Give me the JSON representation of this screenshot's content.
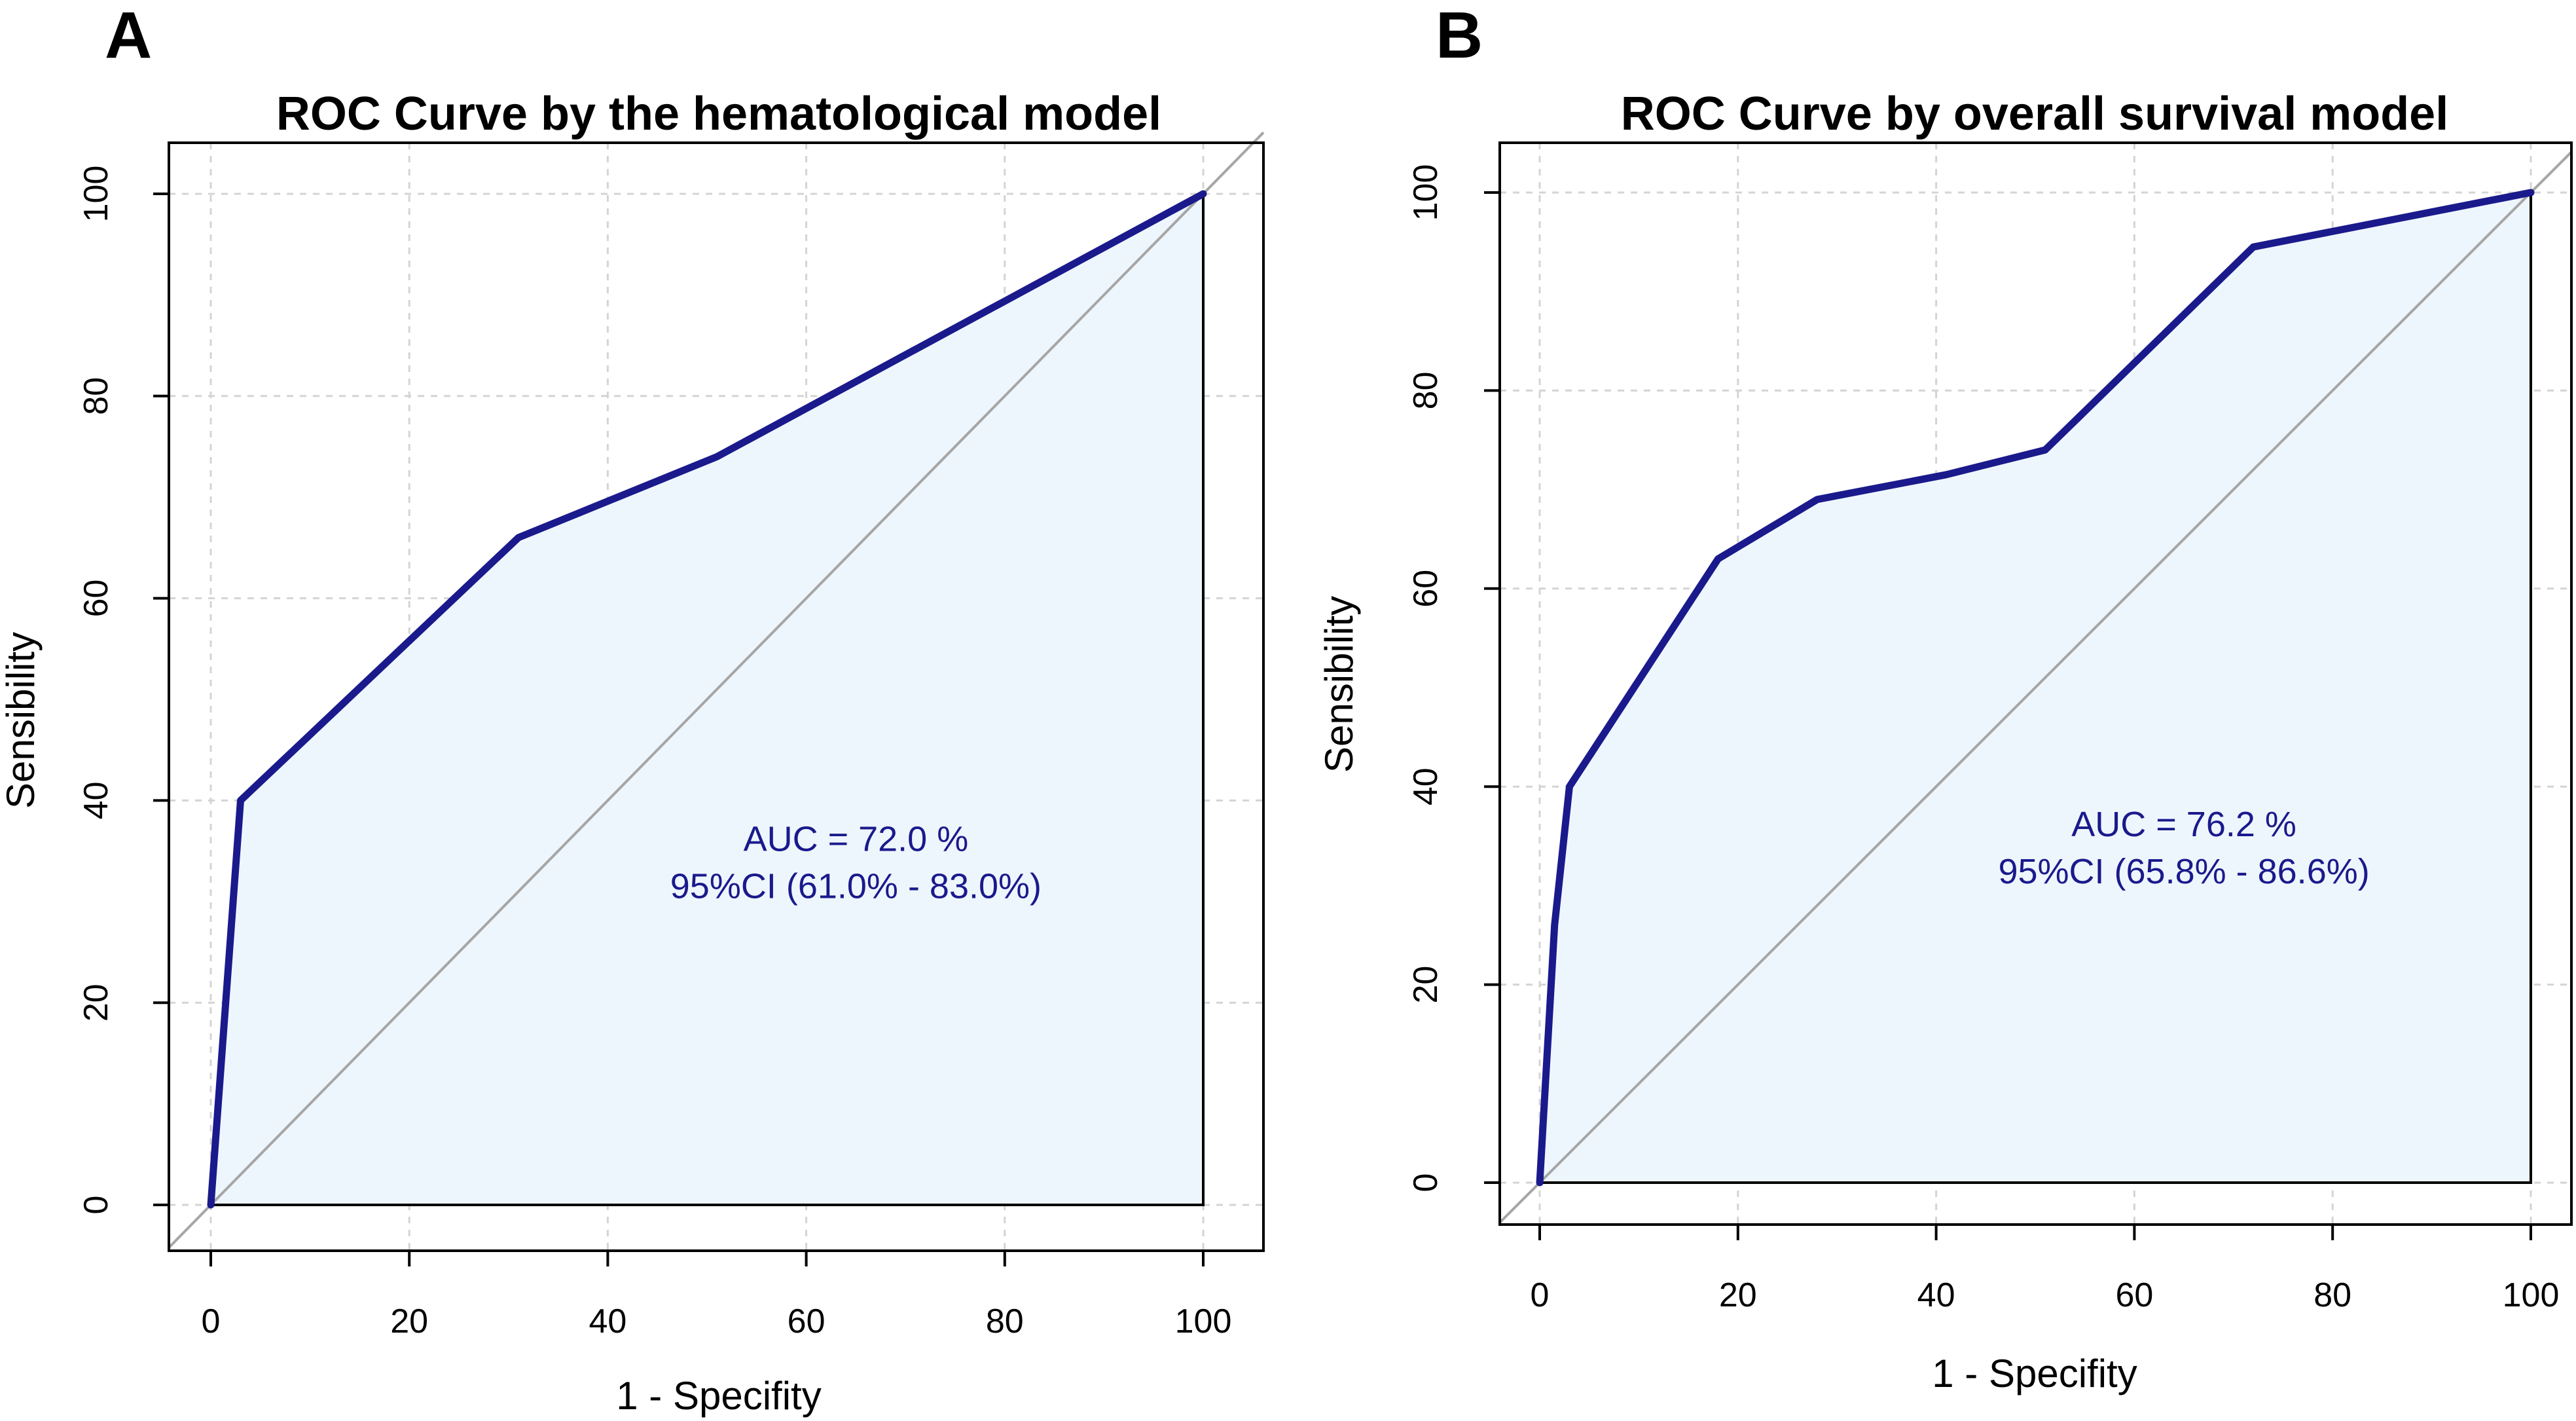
{
  "chart_data": [
    {
      "type": "line",
      "panel": "A",
      "title": "ROC Curve by the hematological model",
      "xlabel": "1 - Specifity",
      "ylabel": "Sensibility",
      "xlim": [
        0,
        100
      ],
      "ylim": [
        0,
        100
      ],
      "xticks": [
        0,
        20,
        40,
        60,
        80,
        100
      ],
      "yticks": [
        0,
        20,
        40,
        60,
        80,
        100
      ],
      "grid": true,
      "series": [
        {
          "name": "ROC",
          "color": "#1a1a8c",
          "fill": "#eef6fd",
          "x": [
            0,
            3,
            31,
            51,
            100
          ],
          "y": [
            0,
            40,
            66,
            74,
            100
          ]
        }
      ],
      "annotations": [
        "AUC = 72.0 %",
        "95%CI (61.0% - 83.0%)"
      ],
      "annotation_pos": [
        65,
        35
      ]
    },
    {
      "type": "line",
      "panel": "B",
      "title": "ROC Curve by overall survival model",
      "xlabel": "1 - Specifity",
      "ylabel": "Sensibility",
      "xlim": [
        0,
        100
      ],
      "ylim": [
        0,
        100
      ],
      "xticks": [
        0,
        20,
        40,
        60,
        80,
        100
      ],
      "yticks": [
        0,
        20,
        40,
        60,
        80,
        100
      ],
      "grid": true,
      "series": [
        {
          "name": "ROC",
          "color": "#1a1a8c",
          "fill": "#eef6fd",
          "x": [
            0,
            1.5,
            3,
            18,
            28,
            41,
            51,
            72,
            100
          ],
          "y": [
            0,
            26,
            40,
            63,
            69,
            71.5,
            74,
            94.5,
            100
          ]
        }
      ],
      "annotations": [
        "AUC = 76.2 %",
        "95%CI (65.8% - 86.6%)"
      ],
      "annotation_pos": [
        65,
        35
      ]
    }
  ]
}
